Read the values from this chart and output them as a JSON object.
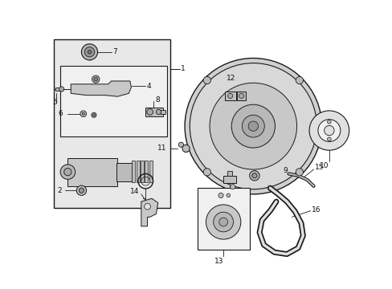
{
  "fig_width": 4.89,
  "fig_height": 3.6,
  "dpi": 100,
  "bg": "#ffffff",
  "lc": "#1a1a1a",
  "box_bg": "#e8e8e8",
  "inner_box_bg": "#f2f2f2",
  "part_fill": "#d4d4d4",
  "part_fill2": "#c0c0c0",
  "white": "#ffffff"
}
